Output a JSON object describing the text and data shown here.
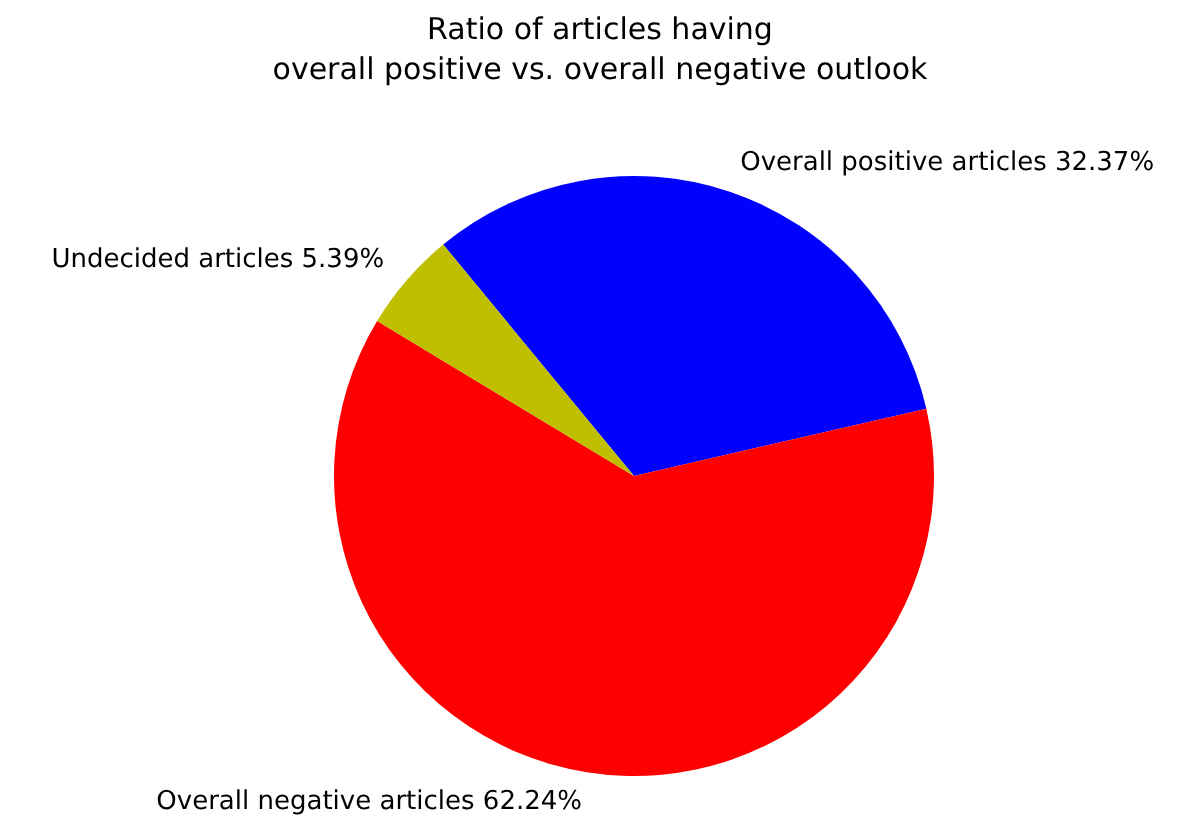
{
  "chart_data": {
    "type": "pie",
    "title": "Ratio of articles having\noverall positive vs. overall negative outlook",
    "categories": [
      "Overall positive articles",
      "Overall negative articles",
      "Undecided articles"
    ],
    "values": [
      32.37,
      62.24,
      5.39
    ],
    "value_labels": [
      "32.37%",
      "62.24%",
      "5.39%"
    ],
    "colors": [
      "#0000ff",
      "#ff0000",
      "#bfbf00"
    ]
  }
}
